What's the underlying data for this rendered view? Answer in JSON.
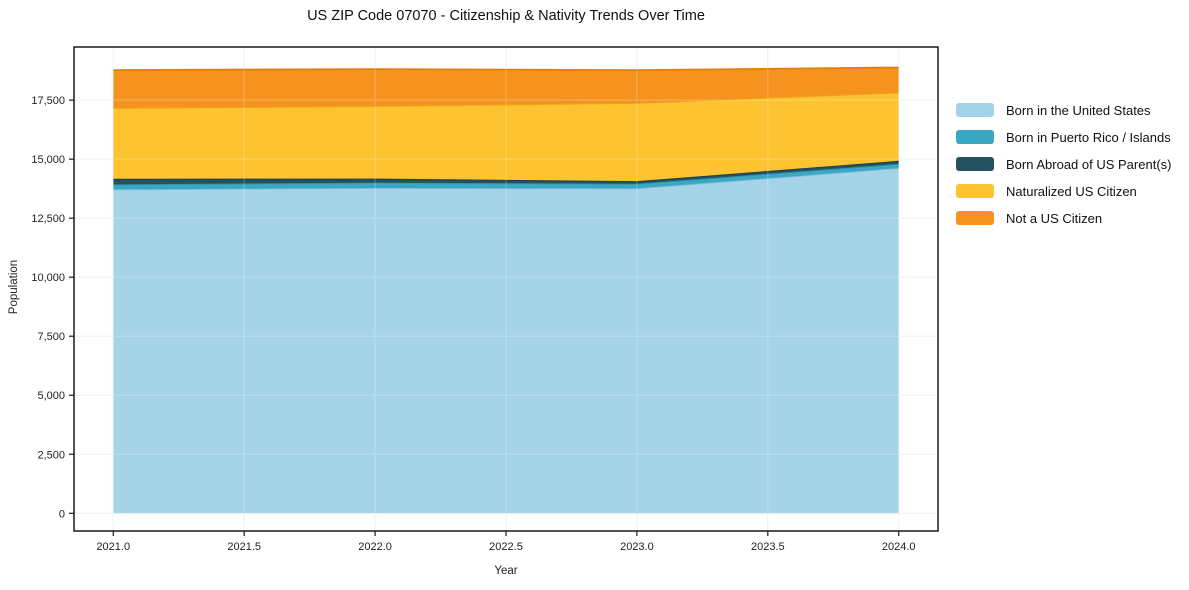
{
  "page": {
    "background": "#ffffff"
  },
  "chart_data": {
    "type": "area",
    "stacked": true,
    "title": "US ZIP Code 07070 - Citizenship & Nativity Trends Over Time",
    "xlabel": "Year",
    "ylabel": "Population",
    "x": [
      2021,
      2022,
      2023,
      2024
    ],
    "series": [
      {
        "name": "Born in the United States",
        "color": "#A5D3E8",
        "line_color": "#82BEDC",
        "values": [
          13720,
          13780,
          13760,
          14620
        ]
      },
      {
        "name": "Born in Puerto Rico / Islands",
        "color": "#3BA8C2",
        "line_color": "#2E93AD",
        "values": [
          210,
          225,
          200,
          180
        ]
      },
      {
        "name": "Born Abroad of US Parent(s)",
        "color": "#24505F",
        "line_color": "#1B3F4B",
        "values": [
          240,
          170,
          110,
          130
        ]
      },
      {
        "name": "Naturalized US Citizen",
        "color": "#FDC330",
        "line_color": "#EDA61A",
        "values": [
          3000,
          3070,
          3310,
          2890
        ]
      },
      {
        "name": "Not a US Citizen",
        "color": "#F5931E",
        "line_color": "#E07F10",
        "values": [
          1600,
          1570,
          1390,
          1060
        ]
      }
    ],
    "x_ticks": {
      "values": [
        2021.0,
        2021.5,
        2022.0,
        2022.5,
        2023.0,
        2023.5,
        2024.0
      ],
      "labels": [
        "2021.0",
        "2021.5",
        "2022.0",
        "2022.5",
        "2023.0",
        "2023.5",
        "2024.0"
      ]
    },
    "y_ticks": {
      "values": [
        0,
        2500,
        5000,
        7500,
        10000,
        12500,
        15000,
        17500
      ],
      "labels": [
        "0",
        "2,500",
        "5,000",
        "7,500",
        "10,000",
        "12,500",
        "15,000",
        "17,500"
      ]
    },
    "xlim": [
      2020.85,
      2024.15
    ],
    "ylim": [
      -750,
      19750
    ],
    "grid": true,
    "legend_position": "right",
    "frame_color": "#1a1a1a",
    "grid_color": "#ececec",
    "tick_label_color": "#222222"
  }
}
